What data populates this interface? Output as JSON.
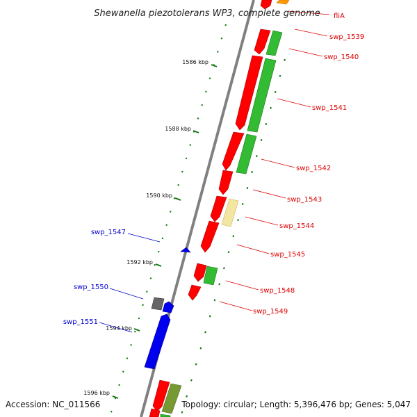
{
  "title": "Shewanella piezotolerans WP3, complete genome",
  "footer": {
    "accession": "Accession: NC_011566",
    "topology": "Topology: circular; Length: 5,396,476 bp; Genes: 5,047"
  },
  "colors": {
    "backbone": "#808080",
    "forward_cds": "#ff0000",
    "reverse_cds": "#0000ee",
    "forward_label": "#dd0000",
    "reverse_label": "#0000cc",
    "tick": "#117711",
    "cog_green": "#33bb33",
    "cog_olive": "#779933",
    "cog_yellow": "#f2e6a0",
    "cog_orange": "#ff9900",
    "cog_gray": "#666666"
  },
  "ticks": [
    {
      "label": "1586 kbp"
    },
    {
      "label": "1588 kbp"
    },
    {
      "label": "1590 kbp"
    },
    {
      "label": "1592 kbp"
    },
    {
      "label": "1594 kbp"
    },
    {
      "label": "1596 kbp"
    }
  ],
  "forward_labels": [
    "fliA",
    "swp_1539",
    "swp_1540",
    "swp_1541",
    "swp_1542",
    "swp_1543",
    "swp_1544",
    "swp_1545",
    "swp_1548",
    "swp_1549"
  ],
  "reverse_labels": [
    "swp_1547",
    "swp_1550",
    "swp_1551"
  ]
}
